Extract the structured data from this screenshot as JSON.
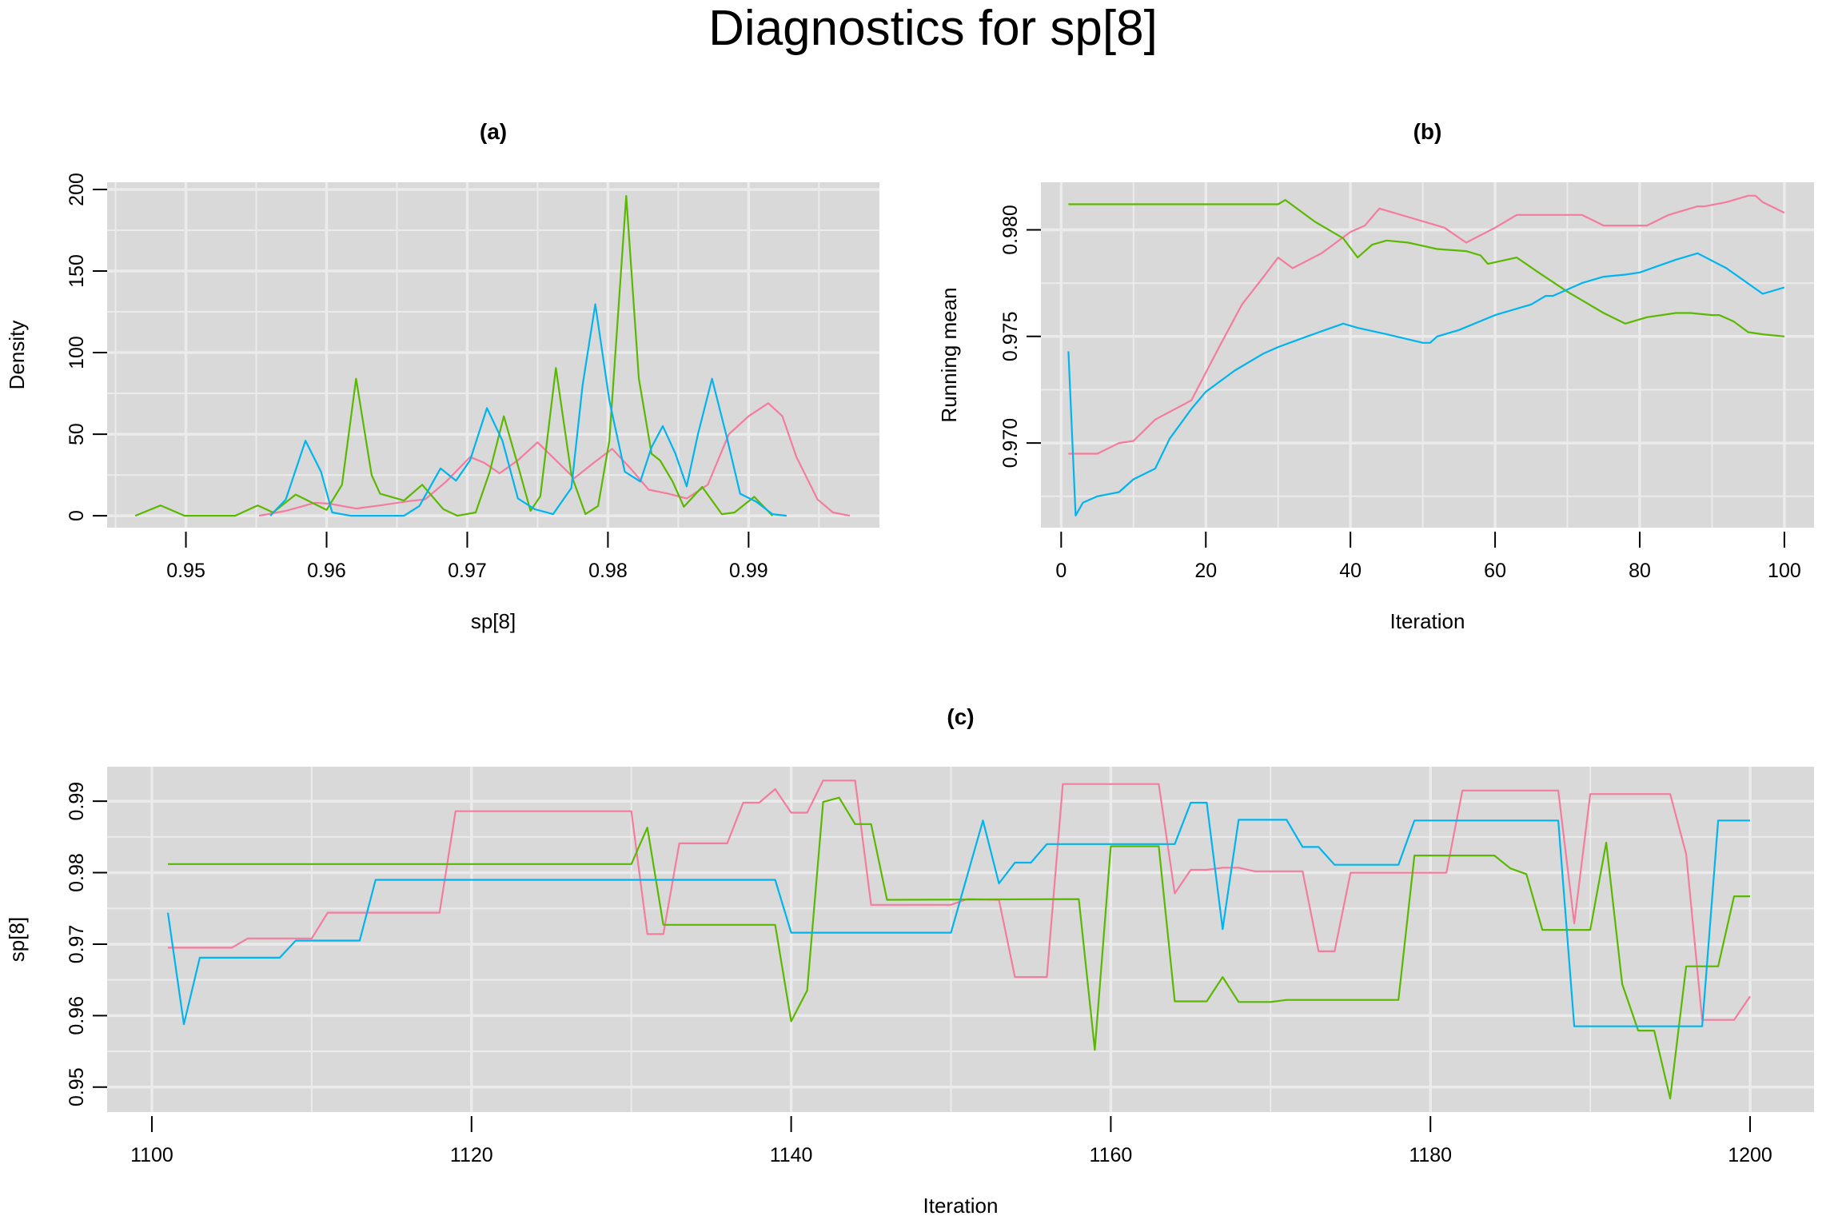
{
  "title": "Diagnostics for sp[8]",
  "colors": {
    "chain1": "#F47C9E",
    "chain2": "#5BB800",
    "chain3": "#00B4EF",
    "panel_bg": "#D9D9D9",
    "grid": "#EBEBEB"
  },
  "chart_data": [
    {
      "panel": "(a)",
      "type": "line",
      "xlabel": "sp[8]",
      "ylabel": "Density",
      "xlim": [
        0.9444,
        0.9993
      ],
      "ylim": [
        -7.3,
        204.4
      ],
      "xticks": [
        0.95,
        0.96,
        0.97,
        0.98,
        0.99
      ],
      "xtick_labels": [
        "0.95",
        "0.96",
        "0.97",
        "0.98",
        "0.99"
      ],
      "yticks": [
        0,
        50,
        100,
        150,
        200
      ],
      "ytick_labels": [
        "0",
        "50",
        "100",
        "150",
        "200"
      ],
      "xminor": [
        0.945,
        0.955,
        0.965,
        0.975,
        0.985,
        0.995
      ],
      "yminor": [
        25,
        75,
        125,
        175
      ],
      "grid": true,
      "series": [
        {
          "color": "#F47C9E",
          "x": [
            0.9552,
            0.9571,
            0.9592,
            0.9602,
            0.9621,
            0.9638,
            0.9659,
            0.967,
            0.9685,
            0.9702,
            0.9712,
            0.9723,
            0.9736,
            0.975,
            0.9763,
            0.9776,
            0.979,
            0.9803,
            0.9816,
            0.9829,
            0.9843,
            0.9856,
            0.9871,
            0.9886,
            0.99,
            0.9914,
            0.9924,
            0.9934,
            0.9949,
            0.996,
            0.9972
          ],
          "y": [
            0,
            3,
            8,
            7.4,
            4.4,
            6.3,
            9,
            10,
            21,
            36,
            32.5,
            26,
            34,
            45,
            34,
            23,
            32.5,
            41,
            29,
            16,
            13.5,
            10.6,
            19,
            50,
            61,
            69,
            61,
            36,
            10,
            2,
            0
          ]
        },
        {
          "color": "#5BB800",
          "x": [
            0.9464,
            0.9482,
            0.9499,
            0.9535,
            0.9551,
            0.9562,
            0.9578,
            0.96,
            0.9611,
            0.9621,
            0.9632,
            0.9638,
            0.9655,
            0.9668,
            0.9683,
            0.9693,
            0.9706,
            0.9716,
            0.9726,
            0.9735,
            0.9745,
            0.9752,
            0.9763,
            0.9774,
            0.9784,
            0.9793,
            0.9801,
            0.9813,
            0.9822,
            0.9831,
            0.9837,
            0.9846,
            0.9854,
            0.9867,
            0.9881,
            0.989,
            0.9904,
            0.9917
          ],
          "y": [
            0,
            6.3,
            0,
            0,
            6.3,
            2,
            13,
            3.6,
            19,
            84,
            25,
            13.5,
            9.3,
            19,
            4,
            0,
            2,
            27,
            61,
            34,
            3,
            12,
            90.6,
            25,
            1,
            6,
            46,
            196,
            84,
            38,
            34,
            21,
            5.5,
            17.7,
            1,
            2,
            11.6,
            0
          ]
        },
        {
          "color": "#00B4EF",
          "x": [
            0.956,
            0.9571,
            0.9585,
            0.9596,
            0.9604,
            0.9617,
            0.9655,
            0.9666,
            0.9681,
            0.9692,
            0.9702,
            0.9714,
            0.9725,
            0.9736,
            0.9748,
            0.9761,
            0.9774,
            0.9782,
            0.9791,
            0.9801,
            0.9812,
            0.9823,
            0.9831,
            0.9839,
            0.9848,
            0.9856,
            0.9864,
            0.9874,
            0.9884,
            0.9894,
            0.9905,
            0.9917,
            0.9927
          ],
          "y": [
            0,
            10,
            46,
            27,
            2,
            0,
            0,
            6,
            29,
            21.5,
            34,
            66,
            46,
            10.6,
            4,
            1,
            17,
            80,
            129.6,
            70.6,
            27,
            21,
            42,
            55,
            38,
            18,
            50,
            84,
            50,
            13.5,
            8.8,
            1,
            0
          ]
        }
      ]
    },
    {
      "panel": "(b)",
      "type": "line",
      "xlabel": "Iteration",
      "ylabel": "Running mean",
      "xlim": [
        -2.8,
        104.1
      ],
      "ylim": [
        0.96603,
        0.98223
      ],
      "xticks": [
        0,
        20,
        40,
        60,
        80,
        100
      ],
      "xtick_labels": [
        "0",
        "20",
        "40",
        "60",
        "80",
        "100"
      ],
      "yticks": [
        0.97,
        0.975,
        0.98
      ],
      "ytick_labels": [
        "0.970",
        "0.975",
        "0.980"
      ],
      "xminor": [
        10,
        30,
        50,
        70,
        90
      ],
      "yminor": [
        0.9675,
        0.9725,
        0.9775
      ],
      "grid": true,
      "series": [
        {
          "color": "#F47C9E",
          "x": [
            1,
            5,
            8,
            10,
            13,
            18,
            20,
            22,
            25,
            28,
            30,
            32,
            36,
            40,
            42,
            44,
            50,
            53,
            56,
            60,
            63,
            69,
            72,
            75,
            81,
            84,
            88,
            89,
            92,
            95,
            96,
            97,
            100
          ],
          "y": [
            0.9695,
            0.9695,
            0.97,
            0.9701,
            0.9711,
            0.972,
            0.9733,
            0.9746,
            0.9765,
            0.9778,
            0.9787,
            0.9782,
            0.9789,
            0.9799,
            0.9802,
            0.981,
            0.9804,
            0.9801,
            0.9794,
            0.9801,
            0.9807,
            0.9807,
            0.9807,
            0.9802,
            0.9802,
            0.9807,
            0.9811,
            0.9811,
            0.9813,
            0.9816,
            0.9816,
            0.9813,
            0.9808
          ]
        },
        {
          "color": "#5BB800",
          "x": [
            1,
            30,
            31,
            35,
            39,
            41,
            43,
            45,
            48,
            52,
            56,
            58,
            59,
            63,
            66,
            70,
            75,
            78,
            81,
            85,
            87,
            90,
            91,
            93,
            95,
            97,
            100
          ],
          "y": [
            0.9812,
            0.9812,
            0.9814,
            0.9804,
            0.9796,
            0.9787,
            0.9793,
            0.9795,
            0.9794,
            0.9791,
            0.979,
            0.9788,
            0.9784,
            0.9787,
            0.978,
            0.9771,
            0.9761,
            0.9756,
            0.9759,
            0.9761,
            0.9761,
            0.976,
            0.976,
            0.9757,
            0.9752,
            0.9751,
            0.975
          ]
        },
        {
          "color": "#00B4EF",
          "x": [
            1,
            2,
            3,
            5,
            8,
            10,
            13,
            15,
            18,
            20,
            24,
            28,
            30,
            34,
            39,
            41,
            45,
            50,
            51,
            52,
            55,
            60,
            65,
            67,
            68,
            72,
            75,
            78,
            80,
            85,
            88,
            92,
            97,
            100
          ],
          "y": [
            0.9743,
            0.9666,
            0.9672,
            0.9675,
            0.9677,
            0.9683,
            0.9688,
            0.9702,
            0.9716,
            0.9724,
            0.9734,
            0.9742,
            0.9745,
            0.975,
            0.9756,
            0.9754,
            0.9751,
            0.9747,
            0.9747,
            0.975,
            0.9753,
            0.976,
            0.9765,
            0.9769,
            0.9769,
            0.9775,
            0.9778,
            0.9779,
            0.978,
            0.9786,
            0.9789,
            0.9782,
            0.977,
            0.9773
          ]
        }
      ]
    },
    {
      "panel": "(c)",
      "type": "line",
      "xlabel": "Iteration",
      "ylabel": "sp[8]",
      "xlim": [
        1097.2,
        1204.0
      ],
      "ylim": [
        0.9465,
        0.99483
      ],
      "xticks": [
        1100,
        1120,
        1140,
        1160,
        1180,
        1200
      ],
      "xtick_labels": [
        "1100",
        "1120",
        "1140",
        "1160",
        "1180",
        "1200"
      ],
      "yticks": [
        0.95,
        0.96,
        0.97,
        0.98,
        0.99
      ],
      "ytick_labels": [
        "0.95",
        "0.96",
        "0.97",
        "0.98",
        "0.99"
      ],
      "xminor": [
        1110,
        1130,
        1150,
        1170,
        1190
      ],
      "yminor": [
        0.955,
        0.965,
        0.975,
        0.985
      ],
      "grid": true,
      "series": [
        {
          "color": "#F47C9E",
          "x": [
            1101,
            1105,
            1106,
            1110,
            1111,
            1118,
            1119,
            1130,
            1131,
            1132,
            1133,
            1136,
            1137,
            1138,
            1139,
            1140,
            1141,
            1142,
            1144,
            1145,
            1150,
            1151,
            1153,
            1154,
            1156,
            1157,
            1163,
            1164,
            1165,
            1166,
            1167,
            1168,
            1169,
            1172,
            1173,
            1174,
            1175,
            1181,
            1182,
            1188,
            1189,
            1190,
            1195,
            1196,
            1197,
            1199,
            1200
          ],
          "y": [
            0.9695,
            0.9695,
            0.9708,
            0.9708,
            0.9744,
            0.9744,
            0.9886,
            0.9886,
            0.9714,
            0.9714,
            0.9841,
            0.9841,
            0.9898,
            0.9898,
            0.9917,
            0.9884,
            0.9884,
            0.9929,
            0.9929,
            0.9755,
            0.9755,
            0.9763,
            0.9762,
            0.9654,
            0.9654,
            0.9924,
            0.9924,
            0.9771,
            0.9804,
            0.9804,
            0.9807,
            0.9807,
            0.9802,
            0.9802,
            0.969,
            0.969,
            0.98,
            0.98,
            0.9915,
            0.9915,
            0.9729,
            0.991,
            0.991,
            0.9826,
            0.9594,
            0.9594,
            0.9627
          ]
        },
        {
          "color": "#5BB800",
          "x": [
            1101,
            1130,
            1131,
            1132,
            1139,
            1140,
            1141,
            1142,
            1143,
            1144,
            1145,
            1146,
            1158,
            1159,
            1160,
            1163,
            1164,
            1166,
            1167,
            1168,
            1170,
            1171,
            1178,
            1179,
            1184,
            1185,
            1186,
            1187,
            1190,
            1191,
            1192,
            1193,
            1194,
            1195,
            1196,
            1198,
            1199,
            1200
          ],
          "y": [
            0.9812,
            0.9812,
            0.9863,
            0.9727,
            0.9727,
            0.9592,
            0.9635,
            0.9899,
            0.9905,
            0.9868,
            0.9868,
            0.9762,
            0.9763,
            0.9552,
            0.9837,
            0.9837,
            0.962,
            0.962,
            0.9654,
            0.9619,
            0.9619,
            0.9622,
            0.9622,
            0.9824,
            0.9824,
            0.9806,
            0.9798,
            0.972,
            0.972,
            0.9842,
            0.9644,
            0.9579,
            0.9579,
            0.9484,
            0.9669,
            0.9669,
            0.9767,
            0.9767
          ]
        },
        {
          "color": "#00B4EF",
          "x": [
            1101,
            1102,
            1103,
            1108,
            1109,
            1113,
            1114,
            1139,
            1140,
            1150,
            1152,
            1153,
            1154,
            1155,
            1156,
            1164,
            1165,
            1166,
            1167,
            1168,
            1171,
            1172,
            1173,
            1174,
            1178,
            1179,
            1188,
            1189,
            1197,
            1198,
            1200
          ],
          "y": [
            0.9744,
            0.9588,
            0.9681,
            0.9681,
            0.9705,
            0.9705,
            0.979,
            0.979,
            0.9716,
            0.9716,
            0.9873,
            0.9785,
            0.9814,
            0.9814,
            0.984,
            0.984,
            0.9898,
            0.9898,
            0.9721,
            0.9874,
            0.9874,
            0.9836,
            0.9836,
            0.9811,
            0.9811,
            0.9873,
            0.9873,
            0.9585,
            0.9585,
            0.9873,
            0.9873
          ]
        }
      ]
    }
  ]
}
